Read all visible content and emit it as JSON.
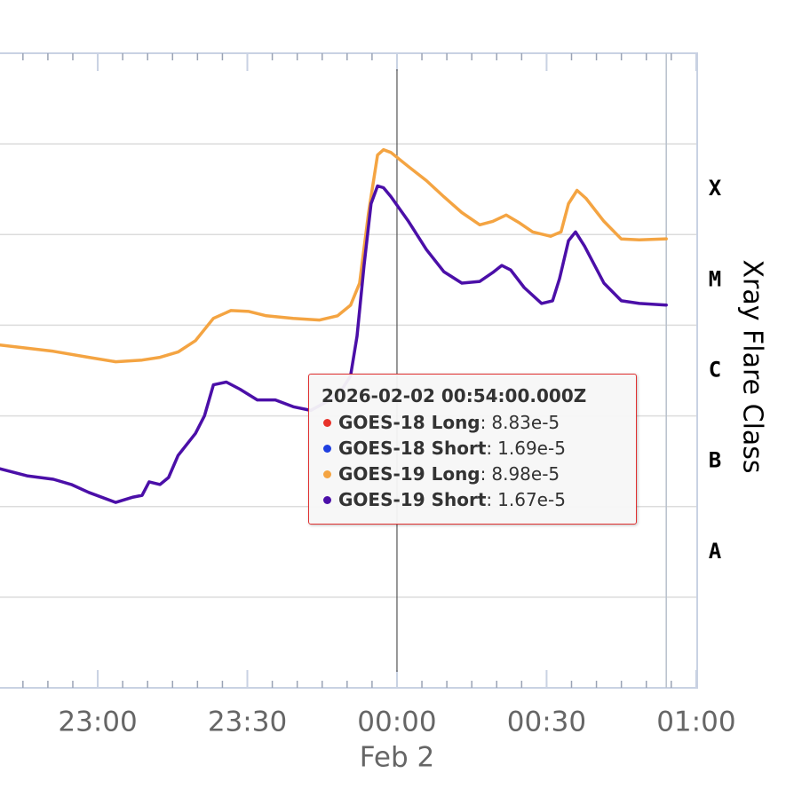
{
  "chart_data": {
    "type": "line",
    "y_log": true,
    "ylim": [
      1e-09,
      0.01
    ],
    "yticks": [
      1e-08,
      1e-07,
      1e-06,
      1e-05,
      0.0001,
      0.001
    ],
    "grid": true,
    "y2lim": [
      1e-09,
      0.01
    ],
    "y2ticks": [
      {
        "value": 0.000316,
        "label": "X"
      },
      {
        "value": 3.16e-05,
        "label": "M"
      },
      {
        "value": 3.16e-06,
        "label": "C"
      },
      {
        "value": 3.16e-07,
        "label": "B"
      },
      {
        "value": 3.16e-08,
        "label": "A"
      }
    ],
    "y2_title": "Xray Flare Class",
    "xlim": [
      -79.6,
      60.2
    ],
    "xticks": [
      {
        "value": -60,
        "label": "23:00"
      },
      {
        "value": -30,
        "label": "23:30"
      },
      {
        "value": 0,
        "label": "00:00"
      },
      {
        "value": 30,
        "label": "00:30"
      },
      {
        "value": 60,
        "label": "01:00"
      }
    ],
    "x_minor_interval": 5,
    "x_sublabel": {
      "value": 0,
      "label": "Feb 2"
    },
    "plot_line_x": 0,
    "crosshair_x": 54,
    "series": [
      {
        "name": "GOES-18 Long",
        "color": "#e8332b"
      },
      {
        "name": "GOES-18 Short",
        "color": "#1f3fe0"
      },
      {
        "name": "GOES-19 Long",
        "color": "#f4a442",
        "x": [
          -79.6,
          -68.9,
          -61.8,
          -56.4,
          -51.1,
          -47.5,
          -43.9,
          -40.4,
          -36.8,
          -33.3,
          -29.7,
          -26.2,
          -20.8,
          -15.5,
          -11.9,
          -9.3,
          -7.5,
          -5.7,
          -3.9,
          -2.7,
          -1.2,
          2.3,
          5.9,
          9.4,
          13.0,
          16.6,
          19.2,
          21.9,
          24.6,
          27.2,
          30.8,
          32.9,
          34.4,
          36.1,
          37.9,
          41.5,
          45.0,
          48.6,
          54
        ],
        "values": [
          6.05e-06,
          5.16e-06,
          4.42e-06,
          3.95e-06,
          4.13e-06,
          4.42e-06,
          5.06e-06,
          6.76e-06,
          1.19e-05,
          1.45e-05,
          1.42e-05,
          1.27e-05,
          1.19e-05,
          1.14e-05,
          1.27e-05,
          1.66e-05,
          2.91e-05,
          0.000175,
          0.000754,
          0.000863,
          0.000805,
          0.000562,
          0.000394,
          0.000262,
          0.000175,
          0.000128,
          0.00014,
          0.000164,
          0.000134,
          0.000107,
          9.57e-05,
          0.000107,
          0.000219,
          0.000307,
          0.000251,
          0.00014,
          8.93e-05,
          8.75e-05,
          8.98e-05
        ]
      },
      {
        "name": "GOES-19 Short",
        "color": "#4b0fa8",
        "x": [
          -79.6,
          -74.2,
          -68.9,
          -65.3,
          -61.8,
          -56.4,
          -52.9,
          -51.1,
          -49.7,
          -47.5,
          -45.8,
          -43.9,
          -40.4,
          -38.6,
          -36.8,
          -34.2,
          -31.5,
          -28.0,
          -24.4,
          -20.8,
          -17.3,
          -13.7,
          -11.0,
          -9.3,
          -8.0,
          -6.6,
          -5.2,
          -3.9,
          -2.7,
          -1.2,
          2.3,
          5.9,
          9.4,
          13.0,
          16.6,
          19.2,
          21.0,
          22.8,
          25.5,
          29.0,
          31.2,
          32.6,
          34.4,
          35.8,
          37.6,
          41.5,
          45.0,
          48.6,
          54
        ],
        "values": [
          2.61e-07,
          2.18e-07,
          2e-07,
          1.75e-07,
          1.43e-07,
          1.11e-07,
          1.27e-07,
          1.33e-07,
          1.87e-07,
          1.75e-07,
          2.09e-07,
          3.66e-07,
          6.41e-07,
          1e-06,
          2.2e-06,
          2.36e-06,
          1.97e-06,
          1.5e-06,
          1.5e-06,
          1.26e-06,
          1.15e-06,
          1.47e-06,
          1.97e-06,
          2.76e-06,
          7.57e-06,
          4.56e-05,
          0.000219,
          0.000344,
          0.000329,
          0.000262,
          0.00014,
          6.83e-05,
          3.9e-05,
          2.91e-05,
          3.04e-05,
          3.81e-05,
          4.56e-05,
          4.07e-05,
          2.6e-05,
          1.74e-05,
          1.86e-05,
          3.26e-05,
          8.55e-05,
          0.000107,
          7.47e-05,
          2.91e-05,
          1.86e-05,
          1.74e-05,
          1.67e-05
        ]
      }
    ],
    "tooltip": {
      "title": "2026-02-02 00:54:00.000Z",
      "values": [
        8.83e-05,
        1.69e-05,
        8.98e-05,
        1.67e-05
      ],
      "value_labels": [
        "8.83e-5",
        "1.69e-5",
        "8.98e-5",
        "1.67e-5"
      ]
    }
  }
}
